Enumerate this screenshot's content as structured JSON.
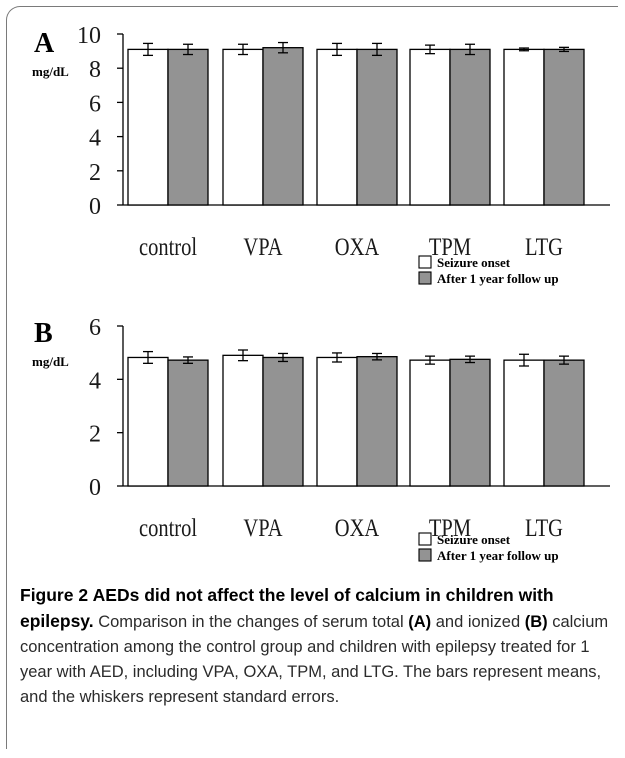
{
  "caption": {
    "figure_label": "Figure 2",
    "title": "AEDs did not affect the level of calcium in children with epilepsy.",
    "text_1": "Comparison in the changes of serum total",
    "ref_a": "(A)",
    "text_2": "and ionized",
    "ref_b": "(B)",
    "text_3": "calcium concentration among the control group and children with epilepsy treated for 1 year with AED, including VPA, OXA, TPM, and LTG. The bars represent means, and the whiskers represent standard errors."
  },
  "chart_data": [
    {
      "type": "bar",
      "panel_label": "A",
      "ylabel": "mg/dL",
      "ylim": [
        0,
        10
      ],
      "yticks": [
        "0",
        "2",
        "4",
        "6",
        "8",
        "10"
      ],
      "categories": [
        "control",
        "VPA",
        "OXA",
        "TPM",
        "LTG"
      ],
      "series": [
        {
          "name": "Seizure onset",
          "color": "#ffffff",
          "values": [
            9.1,
            9.1,
            9.1,
            9.1,
            9.1
          ],
          "errors": [
            0.35,
            0.3,
            0.35,
            0.25,
            0.08
          ]
        },
        {
          "name": "After 1 year follow up",
          "color": "#939393",
          "values": [
            9.1,
            9.2,
            9.1,
            9.1,
            9.1
          ],
          "errors": [
            0.3,
            0.3,
            0.35,
            0.3,
            0.12
          ]
        }
      ]
    },
    {
      "type": "bar",
      "panel_label": "B",
      "ylabel": "mg/dL",
      "ylim": [
        0,
        6
      ],
      "yticks": [
        "0",
        "2",
        "4",
        "6"
      ],
      "categories": [
        "control",
        "VPA",
        "OXA",
        "TPM",
        "LTG"
      ],
      "series": [
        {
          "name": "Seizure onset",
          "color": "#ffffff",
          "values": [
            4.82,
            4.9,
            4.82,
            4.72,
            4.72
          ],
          "errors": [
            0.22,
            0.2,
            0.17,
            0.15,
            0.22
          ]
        },
        {
          "name": "After 1 year follow up",
          "color": "#939393",
          "values": [
            4.72,
            4.82,
            4.85,
            4.75,
            4.72
          ],
          "errors": [
            0.12,
            0.15,
            0.12,
            0.12,
            0.15
          ]
        }
      ]
    }
  ]
}
